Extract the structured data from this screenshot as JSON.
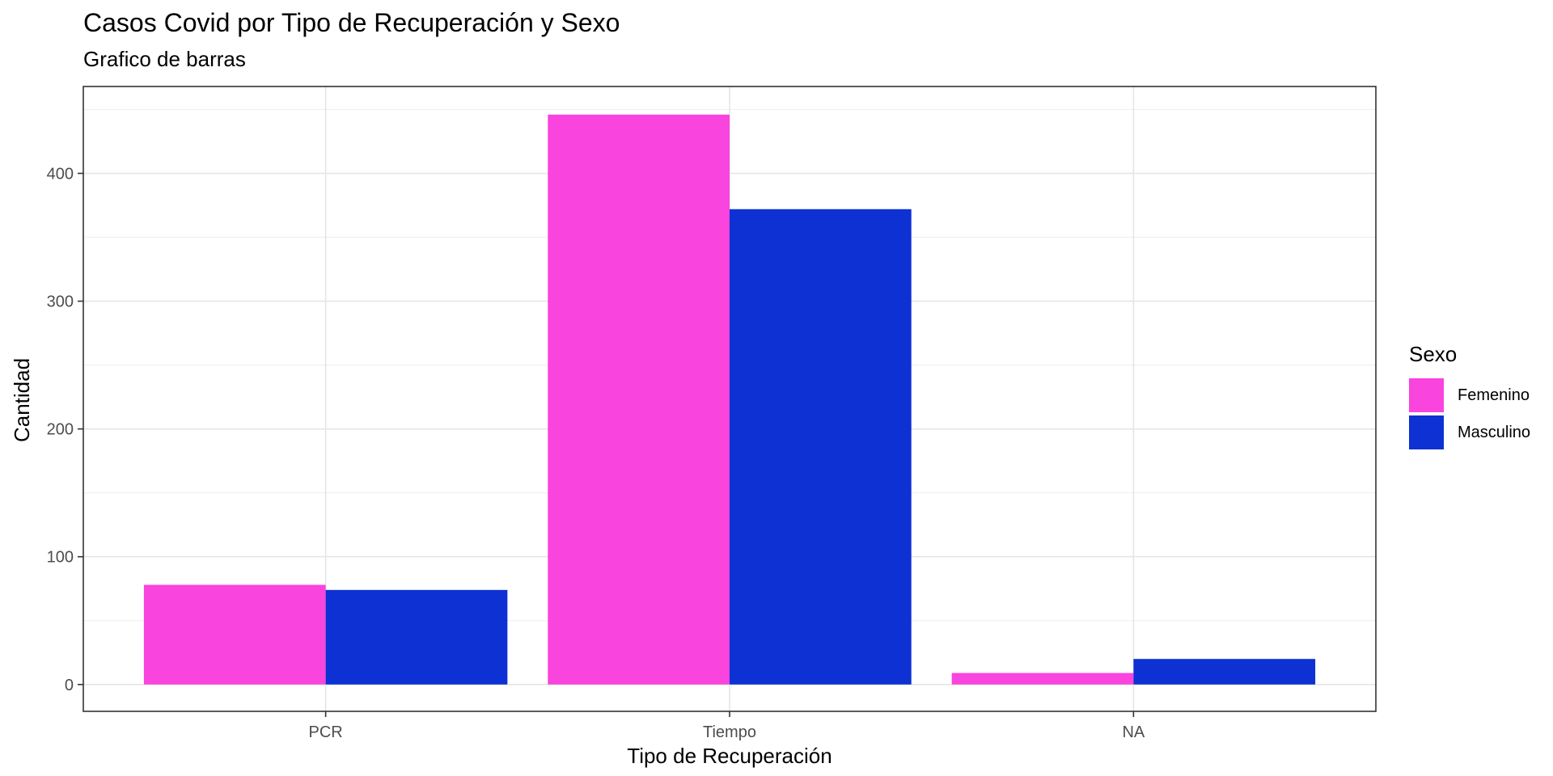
{
  "chart_data": {
    "type": "bar",
    "title": "Casos Covid por Tipo de Recuperación y Sexo",
    "subtitle": "Grafico de barras",
    "xlabel": "Tipo de Recuperación",
    "ylabel": "Cantidad",
    "categories": [
      "PCR",
      "Tiempo",
      "NA"
    ],
    "series": [
      {
        "name": "Femenino",
        "color": "#F944DE",
        "values": [
          78,
          446,
          9
        ]
      },
      {
        "name": "Masculino",
        "color": "#0D31D3",
        "values": [
          74,
          372,
          20
        ]
      }
    ],
    "ylim": [
      -21,
      468
    ],
    "yticks": [
      0,
      100,
      200,
      300,
      400
    ],
    "grid": true,
    "legend": {
      "title": "Sexo",
      "position": "right"
    }
  }
}
